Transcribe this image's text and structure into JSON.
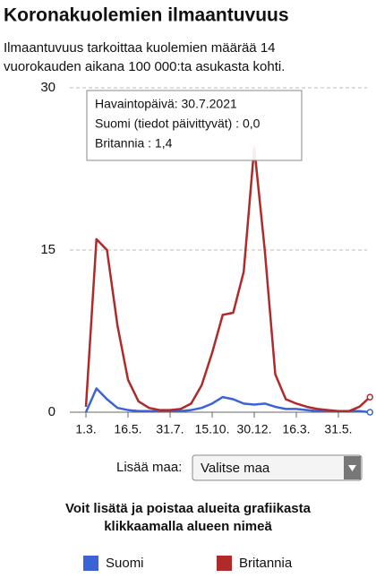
{
  "chart_data": {
    "type": "line",
    "title": "Koronakuolemien ilmaantuvuus",
    "subtitle": [
      "Ilmaantuvuus tarkoittaa kuolemien määrää 14",
      "vuorokauden aikana 100 000:ta asukasta kohti."
    ],
    "categories": [
      "1.3.",
      null,
      null,
      null,
      "16.5.",
      null,
      null,
      null,
      "31.7.",
      null,
      null,
      null,
      "15.10.",
      null,
      null,
      null,
      "30.12.",
      null,
      null,
      null,
      "16.3.",
      null,
      null,
      null,
      "31.5.",
      null,
      null,
      null
    ],
    "series": [
      {
        "name": "Suomi",
        "color": "#3a63d6",
        "values": [
          0,
          2.2,
          1.2,
          0.4,
          0.2,
          0.1,
          0.1,
          0.1,
          0.1,
          0.1,
          0.2,
          0.4,
          0.8,
          1.4,
          1.2,
          0.8,
          0.7,
          0.8,
          0.5,
          0.3,
          0.3,
          0.2,
          0.1,
          0.1,
          0.1,
          0.1,
          0.1,
          0
        ]
      },
      {
        "name": "Britannia",
        "color": "#b02a2a",
        "values": [
          0.5,
          16,
          15,
          8,
          3,
          1,
          0.4,
          0.2,
          0.2,
          0.3,
          0.8,
          2.5,
          5.5,
          9,
          9.2,
          13,
          24.5,
          15,
          3.5,
          1.2,
          0.8,
          0.5,
          0.3,
          0.2,
          0.1,
          0.1,
          0.5,
          1.4
        ]
      }
    ],
    "ylim": [
      0,
      30
    ],
    "yticks": [
      0,
      15,
      30
    ],
    "grid": true,
    "tooltip": {
      "title": "Havaintopäivä: 30.7.2021",
      "rows": [
        "Suomi (tiedot päivittyvät) : 0,0",
        "Britannia : 1,4"
      ]
    }
  },
  "controls": {
    "add_label": "Lisää maa:",
    "select": "Valitse maa",
    "instruction": [
      "Voit lisätä ja poistaa alueita grafiikasta",
      "klikkaamalla alueen nimeä"
    ]
  }
}
